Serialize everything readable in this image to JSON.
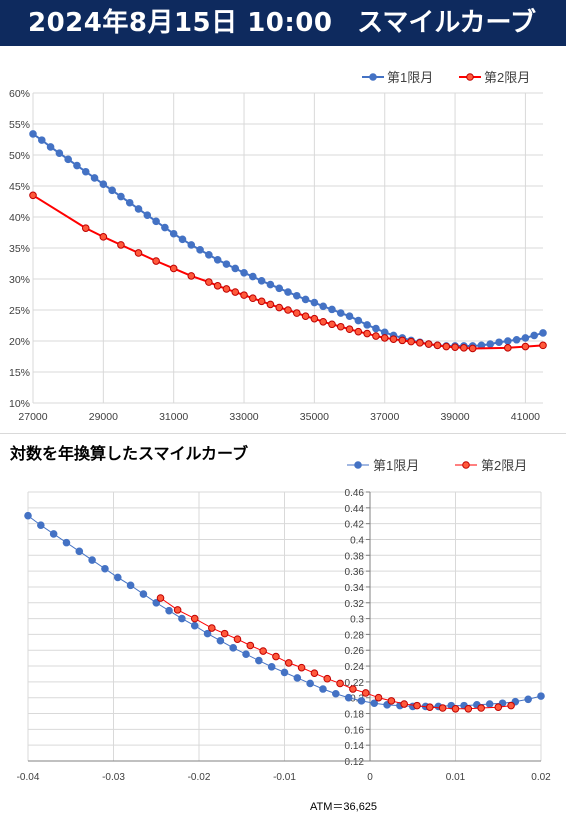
{
  "header": {
    "datetime": "2024年8月15日 10:00",
    "title": "スマイルカーブ"
  },
  "colors": {
    "banner": "#0e2a5e",
    "series1": "#4472c4",
    "series2": "#ff0000",
    "grid": "#d9d9d9"
  },
  "chart_data": [
    {
      "type": "line",
      "title": "",
      "xlim": [
        27000,
        41500
      ],
      "ylim": [
        0.1,
        0.6
      ],
      "x_ticks": [
        "27000",
        "29000",
        "31000",
        "33000",
        "35000",
        "37000",
        "39000",
        "41000"
      ],
      "x_tick_values": [
        27000,
        29000,
        31000,
        33000,
        35000,
        37000,
        39000,
        41000
      ],
      "y_ticks": [
        "10%",
        "15%",
        "20%",
        "25%",
        "30%",
        "35%",
        "40%",
        "45%",
        "50%",
        "55%",
        "60%"
      ],
      "y_tick_values": [
        0.1,
        0.15,
        0.2,
        0.25,
        0.3,
        0.35,
        0.4,
        0.45,
        0.5,
        0.55,
        0.6
      ],
      "legend_position": "top-right",
      "series": [
        {
          "name": "第1限月",
          "x": [
            27000,
            27250,
            27500,
            27750,
            28000,
            28250,
            28500,
            28750,
            29000,
            29250,
            29500,
            29750,
            30000,
            30250,
            30500,
            30750,
            31000,
            31250,
            31500,
            31750,
            32000,
            32250,
            32500,
            32750,
            33000,
            33250,
            33500,
            33750,
            34000,
            34250,
            34500,
            34750,
            35000,
            35250,
            35500,
            35750,
            36000,
            36250,
            36500,
            36750,
            37000,
            37250,
            37500,
            37750,
            38000,
            38250,
            38500,
            38750,
            39000,
            39250,
            39500,
            39750,
            40000,
            40250,
            40500,
            40750,
            41000,
            41250,
            41500
          ],
          "y": [
            0.534,
            0.524,
            0.513,
            0.503,
            0.493,
            0.483,
            0.473,
            0.463,
            0.453,
            0.443,
            0.433,
            0.423,
            0.413,
            0.403,
            0.393,
            0.383,
            0.373,
            0.364,
            0.355,
            0.347,
            0.339,
            0.331,
            0.324,
            0.317,
            0.31,
            0.304,
            0.297,
            0.291,
            0.285,
            0.279,
            0.273,
            0.267,
            0.262,
            0.256,
            0.251,
            0.245,
            0.24,
            0.233,
            0.226,
            0.22,
            0.214,
            0.209,
            0.205,
            0.201,
            0.198,
            0.195,
            0.193,
            0.192,
            0.192,
            0.192,
            0.192,
            0.193,
            0.195,
            0.198,
            0.2,
            0.202,
            0.205,
            0.209,
            0.213
          ]
        },
        {
          "name": "第2限月",
          "x": [
            27000,
            28500,
            29000,
            29500,
            30000,
            30500,
            31000,
            31500,
            32000,
            32250,
            32500,
            32750,
            33000,
            33250,
            33500,
            33750,
            34000,
            34250,
            34500,
            34750,
            35000,
            35250,
            35500,
            35750,
            36000,
            36250,
            36500,
            36750,
            37000,
            37250,
            37500,
            37750,
            38000,
            38250,
            38500,
            38750,
            39000,
            39250,
            39500,
            40500,
            41000,
            41500
          ],
          "y": [
            0.435,
            0.382,
            0.368,
            0.355,
            0.342,
            0.329,
            0.317,
            0.305,
            0.295,
            0.289,
            0.284,
            0.279,
            0.274,
            0.269,
            0.264,
            0.259,
            0.254,
            0.25,
            0.245,
            0.24,
            0.236,
            0.231,
            0.227,
            0.223,
            0.219,
            0.215,
            0.212,
            0.208,
            0.205,
            0.203,
            0.201,
            0.199,
            0.197,
            0.195,
            0.193,
            0.191,
            0.19,
            0.189,
            0.188,
            0.189,
            0.191,
            0.193
          ]
        }
      ]
    },
    {
      "type": "scatter",
      "title": "対数を年換算したスマイルカーブ",
      "xlim": [
        -0.04,
        0.02
      ],
      "ylim": [
        0.12,
        0.46
      ],
      "x_ticks": [
        "-0.04",
        "-0.03",
        "-0.02",
        "-0.01",
        "0",
        "0.01",
        "0.02"
      ],
      "x_tick_values": [
        -0.04,
        -0.03,
        -0.02,
        -0.01,
        0,
        0.01,
        0.02
      ],
      "y_ticks": [
        "0.12",
        "0.14",
        "0.16",
        "0.18",
        "0.2",
        "0.22",
        "0.24",
        "0.26",
        "0.28",
        "0.3",
        "0.32",
        "0.34",
        "0.36",
        "0.38",
        "0.4",
        "0.42",
        "0.44",
        "0.46"
      ],
      "y_tick_values": [
        0.12,
        0.14,
        0.16,
        0.18,
        0.2,
        0.22,
        0.24,
        0.26,
        0.28,
        0.3,
        0.32,
        0.34,
        0.36,
        0.38,
        0.4,
        0.42,
        0.44,
        0.46
      ],
      "legend_position": "top",
      "annotation": "ATM＝36,625",
      "series": [
        {
          "name": "第1限月",
          "x": [
            -0.04,
            -0.0385,
            -0.037,
            -0.0355,
            -0.034,
            -0.0325,
            -0.031,
            -0.0295,
            -0.028,
            -0.0265,
            -0.025,
            -0.0235,
            -0.022,
            -0.0205,
            -0.019,
            -0.0175,
            -0.016,
            -0.0145,
            -0.013,
            -0.0115,
            -0.01,
            -0.0085,
            -0.007,
            -0.0055,
            -0.004,
            -0.0025,
            -0.001,
            0.0005,
            0.002,
            0.0035,
            0.005,
            0.0065,
            0.008,
            0.0095,
            0.011,
            0.0125,
            0.014,
            0.0155,
            0.017,
            0.0185,
            0.02
          ],
          "y": [
            0.43,
            0.418,
            0.407,
            0.396,
            0.385,
            0.374,
            0.363,
            0.352,
            0.342,
            0.331,
            0.32,
            0.31,
            0.3,
            0.291,
            0.281,
            0.272,
            0.263,
            0.255,
            0.247,
            0.239,
            0.232,
            0.225,
            0.218,
            0.211,
            0.205,
            0.2,
            0.196,
            0.193,
            0.191,
            0.19,
            0.189,
            0.189,
            0.189,
            0.19,
            0.19,
            0.191,
            0.192,
            0.193,
            0.195,
            0.198,
            0.202
          ]
        },
        {
          "name": "第2限月",
          "x": [
            -0.0245,
            -0.0225,
            -0.0205,
            -0.0185,
            -0.017,
            -0.0155,
            -0.014,
            -0.0125,
            -0.011,
            -0.0095,
            -0.008,
            -0.0065,
            -0.005,
            -0.0035,
            -0.002,
            -0.0005,
            0.001,
            0.0025,
            0.004,
            0.0055,
            0.007,
            0.0085,
            0.01,
            0.0115,
            0.013,
            0.015,
            0.0165
          ],
          "y": [
            0.326,
            0.311,
            0.3,
            0.288,
            0.281,
            0.274,
            0.266,
            0.259,
            0.252,
            0.244,
            0.238,
            0.231,
            0.224,
            0.218,
            0.211,
            0.206,
            0.2,
            0.196,
            0.192,
            0.19,
            0.188,
            0.187,
            0.186,
            0.186,
            0.187,
            0.188,
            0.19
          ]
        }
      ]
    }
  ]
}
